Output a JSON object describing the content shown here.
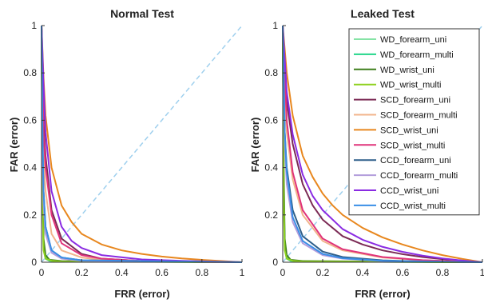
{
  "chart_data": [
    {
      "type": "line",
      "title": "Normal Test",
      "xlabel": "FRR (error)",
      "ylabel": "FAR (error)",
      "xlim": [
        0,
        1
      ],
      "ylim": [
        0,
        1
      ],
      "x_ticks": [
        "0",
        "0.2",
        "0.4",
        "0.6",
        "0.8",
        "1"
      ],
      "y_ticks": [
        "0",
        "0.2",
        "0.4",
        "0.6",
        "0.8",
        "1"
      ],
      "reference_line": {
        "style": "dashed",
        "color": "#9fd0ee",
        "x": [
          0,
          1
        ],
        "y": [
          0,
          1
        ]
      },
      "series": [
        {
          "name": "WD_forearm_uni",
          "color": "#86e3a6",
          "x": [
            0,
            0.005,
            0.01,
            0.02,
            0.04,
            0.1,
            1
          ],
          "y": [
            1,
            0.35,
            0.08,
            0.02,
            0.008,
            0.004,
            0
          ]
        },
        {
          "name": "WD_forearm_multi",
          "color": "#22d68a",
          "x": [
            0,
            0.005,
            0.01,
            0.02,
            0.04,
            0.1,
            1
          ],
          "y": [
            1,
            0.3,
            0.06,
            0.015,
            0.006,
            0.003,
            0
          ]
        },
        {
          "name": "WD_wrist_uni",
          "color": "#3f7f1c",
          "x": [
            0,
            0.005,
            0.01,
            0.02,
            0.04,
            0.1,
            1
          ],
          "y": [
            1,
            0.4,
            0.1,
            0.03,
            0.01,
            0.005,
            0
          ]
        },
        {
          "name": "WD_wrist_multi",
          "color": "#8fd11f",
          "x": [
            0,
            0.005,
            0.01,
            0.02,
            0.05,
            0.1,
            1
          ],
          "y": [
            1,
            0.25,
            0.05,
            0.015,
            0.006,
            0.003,
            0
          ]
        },
        {
          "name": "SCD_forearm_uni",
          "color": "#7b2a55",
          "x": [
            0,
            0.01,
            0.02,
            0.05,
            0.1,
            0.2,
            0.3,
            0.5,
            0.7,
            1
          ],
          "y": [
            1,
            0.6,
            0.45,
            0.22,
            0.1,
            0.035,
            0.015,
            0.005,
            0.002,
            0
          ]
        },
        {
          "name": "SCD_forearm_multi",
          "color": "#f2b48c",
          "x": [
            0,
            0.01,
            0.02,
            0.05,
            0.1,
            0.2,
            0.3,
            0.5,
            0.7,
            1
          ],
          "y": [
            1,
            0.45,
            0.3,
            0.12,
            0.05,
            0.02,
            0.01,
            0.004,
            0.002,
            0
          ]
        },
        {
          "name": "SCD_wrist_uni",
          "color": "#e8871e",
          "x": [
            0,
            0.01,
            0.02,
            0.05,
            0.1,
            0.15,
            0.2,
            0.3,
            0.4,
            0.5,
            0.6,
            0.7,
            0.8,
            0.9,
            1
          ],
          "y": [
            1,
            0.78,
            0.62,
            0.4,
            0.24,
            0.17,
            0.12,
            0.075,
            0.05,
            0.035,
            0.024,
            0.016,
            0.01,
            0.005,
            0
          ]
        },
        {
          "name": "SCD_wrist_multi",
          "color": "#e0337a",
          "x": [
            0,
            0.01,
            0.02,
            0.05,
            0.1,
            0.2,
            0.3,
            0.5,
            1
          ],
          "y": [
            1,
            0.55,
            0.4,
            0.2,
            0.08,
            0.03,
            0.015,
            0.005,
            0
          ]
        },
        {
          "name": "CCD_forearm_uni",
          "color": "#2f5f8a",
          "x": [
            0,
            0.005,
            0.01,
            0.02,
            0.05,
            0.1,
            0.2,
            1
          ],
          "y": [
            1,
            0.5,
            0.3,
            0.15,
            0.05,
            0.02,
            0.008,
            0
          ]
        },
        {
          "name": "CCD_forearm_multi",
          "color": "#b39ddb",
          "x": [
            0,
            0.005,
            0.01,
            0.02,
            0.05,
            0.1,
            0.2,
            1
          ],
          "y": [
            1,
            0.45,
            0.25,
            0.12,
            0.04,
            0.015,
            0.006,
            0
          ]
        },
        {
          "name": "CCD_wrist_uni",
          "color": "#8a2be2",
          "x": [
            0,
            0.01,
            0.02,
            0.05,
            0.1,
            0.15,
            0.2,
            0.3,
            0.5,
            0.7,
            1
          ],
          "y": [
            1,
            0.75,
            0.55,
            0.3,
            0.15,
            0.09,
            0.06,
            0.03,
            0.012,
            0.006,
            0
          ]
        },
        {
          "name": "CCD_wrist_multi",
          "color": "#3a8ee6",
          "x": [
            0,
            0.005,
            0.01,
            0.02,
            0.05,
            0.1,
            0.2,
            1
          ],
          "y": [
            1,
            0.55,
            0.3,
            0.15,
            0.05,
            0.02,
            0.008,
            0
          ]
        }
      ]
    },
    {
      "type": "line",
      "title": "Leaked Test",
      "xlabel": "FRR (error)",
      "ylabel": "FAR (error)",
      "xlim": [
        0,
        1
      ],
      "ylim": [
        0,
        1
      ],
      "x_ticks": [
        "0",
        "0.2",
        "0.4",
        "0.6",
        "0.8",
        "1"
      ],
      "y_ticks": [
        "0",
        "0.2",
        "0.4",
        "0.6",
        "0.8",
        "1"
      ],
      "legend": "top-right",
      "reference_line": {
        "style": "dashed",
        "color": "#9fd0ee",
        "x": [
          0,
          1
        ],
        "y": [
          0,
          1
        ]
      },
      "series": [
        {
          "name": "WD_forearm_uni",
          "color": "#86e3a6",
          "x": [
            0,
            0.005,
            0.01,
            0.02,
            0.04,
            0.1,
            1
          ],
          "y": [
            1,
            0.35,
            0.08,
            0.02,
            0.008,
            0.004,
            0
          ]
        },
        {
          "name": "WD_forearm_multi",
          "color": "#22d68a",
          "x": [
            0,
            0.005,
            0.01,
            0.02,
            0.04,
            0.1,
            1
          ],
          "y": [
            1,
            0.3,
            0.06,
            0.015,
            0.006,
            0.003,
            0
          ]
        },
        {
          "name": "WD_wrist_uni",
          "color": "#3f7f1c",
          "x": [
            0,
            0.005,
            0.01,
            0.02,
            0.04,
            0.1,
            1
          ],
          "y": [
            1,
            0.4,
            0.1,
            0.03,
            0.01,
            0.005,
            0
          ]
        },
        {
          "name": "WD_wrist_multi",
          "color": "#8fd11f",
          "x": [
            0,
            0.005,
            0.01,
            0.02,
            0.05,
            0.1,
            1
          ],
          "y": [
            1,
            0.25,
            0.05,
            0.015,
            0.006,
            0.003,
            0
          ]
        },
        {
          "name": "SCD_forearm_uni",
          "color": "#7b2a55",
          "x": [
            0,
            0.02,
            0.05,
            0.1,
            0.15,
            0.2,
            0.3,
            0.4,
            0.5,
            0.6,
            0.7,
            0.8,
            0.9,
            1
          ],
          "y": [
            1,
            0.68,
            0.5,
            0.33,
            0.24,
            0.18,
            0.11,
            0.075,
            0.05,
            0.034,
            0.022,
            0.013,
            0.006,
            0
          ]
        },
        {
          "name": "SCD_forearm_multi",
          "color": "#f2b48c",
          "x": [
            0,
            0.02,
            0.05,
            0.1,
            0.2,
            0.3,
            0.5,
            0.7,
            1
          ],
          "y": [
            1,
            0.55,
            0.35,
            0.2,
            0.09,
            0.05,
            0.02,
            0.008,
            0
          ]
        },
        {
          "name": "SCD_wrist_uni",
          "color": "#e8871e",
          "x": [
            0,
            0.02,
            0.05,
            0.1,
            0.15,
            0.2,
            0.25,
            0.3,
            0.4,
            0.5,
            0.6,
            0.7,
            0.8,
            0.9,
            1
          ],
          "y": [
            1,
            0.8,
            0.62,
            0.45,
            0.36,
            0.29,
            0.24,
            0.2,
            0.145,
            0.105,
            0.075,
            0.05,
            0.03,
            0.014,
            0
          ]
        },
        {
          "name": "SCD_wrist_multi",
          "color": "#e0337a",
          "x": [
            0,
            0.02,
            0.05,
            0.1,
            0.2,
            0.3,
            0.5,
            0.7,
            1
          ],
          "y": [
            1,
            0.6,
            0.38,
            0.22,
            0.1,
            0.055,
            0.022,
            0.009,
            0
          ]
        },
        {
          "name": "CCD_forearm_uni",
          "color": "#2f5f8a",
          "x": [
            0,
            0.01,
            0.02,
            0.05,
            0.1,
            0.2,
            0.3,
            0.5,
            0.7,
            1
          ],
          "y": [
            1,
            0.55,
            0.4,
            0.22,
            0.11,
            0.045,
            0.022,
            0.008,
            0.003,
            0
          ]
        },
        {
          "name": "CCD_forearm_multi",
          "color": "#b39ddb",
          "x": [
            0,
            0.01,
            0.02,
            0.05,
            0.1,
            0.2,
            0.3,
            0.5,
            1
          ],
          "y": [
            1,
            0.5,
            0.33,
            0.17,
            0.08,
            0.03,
            0.015,
            0.005,
            0
          ]
        },
        {
          "name": "CCD_wrist_uni",
          "color": "#8a2be2",
          "x": [
            0,
            0.02,
            0.05,
            0.1,
            0.15,
            0.2,
            0.3,
            0.4,
            0.5,
            0.6,
            0.7,
            0.8,
            0.9,
            1
          ],
          "y": [
            1,
            0.72,
            0.54,
            0.37,
            0.28,
            0.22,
            0.14,
            0.095,
            0.065,
            0.044,
            0.028,
            0.016,
            0.007,
            0
          ]
        },
        {
          "name": "CCD_wrist_multi",
          "color": "#3a8ee6",
          "x": [
            0,
            0.01,
            0.02,
            0.05,
            0.1,
            0.2,
            0.3,
            0.5,
            1
          ],
          "y": [
            1,
            0.55,
            0.38,
            0.19,
            0.09,
            0.035,
            0.017,
            0.006,
            0
          ]
        }
      ]
    }
  ]
}
